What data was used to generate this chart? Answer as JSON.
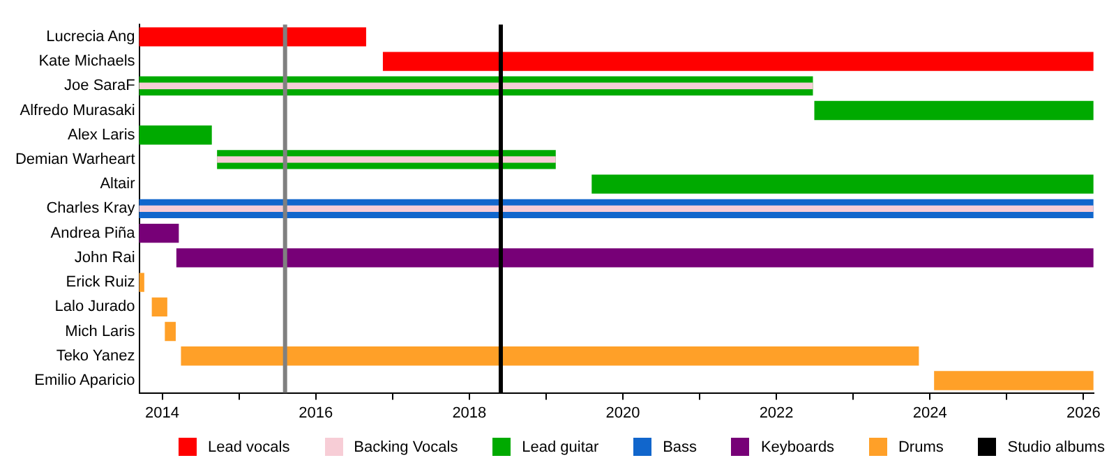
{
  "chart_data": {
    "type": "bar",
    "orientation": "horizontal",
    "categories": [
      "Lucrecia Ang",
      "Kate Michaels",
      "Joe SaraF",
      "Alfredo Murasaki",
      "Alex Laris",
      "Demian Warheart",
      "Altair",
      "Charles Kray",
      "Andrea Piña",
      "John Rai",
      "Erick Ruiz",
      "Lalo Jurado",
      "Mich Laris",
      "Teko Yanez",
      "Emilio Aparicio"
    ],
    "series": [
      {
        "name": "Lead vocals",
        "color": "#ff0000",
        "base": [
          2013.7,
          2016.88,
          null,
          null,
          null,
          null,
          null,
          null,
          null,
          null,
          null,
          null,
          null,
          null,
          null
        ],
        "values": [
          2.95,
          9.25,
          null,
          null,
          null,
          null,
          null,
          null,
          null,
          null,
          null,
          null,
          null,
          null,
          null
        ]
      },
      {
        "name": "Backing Vocals",
        "color": "#f7cdd6",
        "base": [
          null,
          null,
          2013.7,
          null,
          null,
          2014.72,
          null,
          2013.7,
          null,
          null,
          null,
          null,
          null,
          null,
          null
        ],
        "values": [
          null,
          null,
          8.77,
          null,
          null,
          4.4,
          null,
          12.43,
          null,
          null,
          null,
          null,
          null,
          null,
          null
        ]
      },
      {
        "name": "Lead guitar",
        "color": "#00aa00",
        "base": [
          null,
          null,
          2013.7,
          2022.5,
          2013.7,
          2014.72,
          2019.6,
          null,
          null,
          null,
          null,
          null,
          null,
          null,
          null
        ],
        "values": [
          null,
          null,
          8.77,
          3.63,
          0.94,
          4.4,
          6.53,
          null,
          null,
          null,
          null,
          null,
          null,
          null,
          null
        ]
      },
      {
        "name": "Bass",
        "color": "#1166cc",
        "base": [
          null,
          null,
          null,
          null,
          null,
          null,
          null,
          2013.7,
          null,
          null,
          null,
          null,
          null,
          null,
          null
        ],
        "values": [
          null,
          null,
          null,
          null,
          null,
          null,
          null,
          12.43,
          null,
          null,
          null,
          null,
          null,
          null,
          null
        ]
      },
      {
        "name": "Keyboards",
        "color": "#770077",
        "base": [
          null,
          null,
          null,
          null,
          null,
          null,
          null,
          null,
          2013.7,
          2014.19,
          null,
          null,
          null,
          null,
          null
        ],
        "values": [
          null,
          null,
          null,
          null,
          null,
          null,
          null,
          null,
          0.51,
          11.94,
          null,
          null,
          null,
          null,
          null
        ]
      },
      {
        "name": "Drums",
        "color": "#ffa028",
        "base": [
          null,
          null,
          null,
          null,
          null,
          null,
          null,
          null,
          null,
          null,
          2013.7,
          2013.87,
          2014.04,
          2014.25,
          2024.06
        ],
        "values": [
          null,
          null,
          null,
          null,
          null,
          null,
          null,
          null,
          null,
          null,
          0.06,
          0.19,
          0.13,
          9.6,
          2.07
        ]
      }
    ],
    "xlim": [
      2013.7,
      2026.13
    ],
    "xticks": [
      2014,
      {
        "value": 2015,
        "label": null
      },
      2016,
      {
        "value": 2017,
        "label": null
      },
      2018,
      {
        "value": 2019,
        "label": null
      },
      2020,
      {
        "value": 2021,
        "label": null
      },
      2022,
      {
        "value": 2023,
        "label": null
      },
      2024,
      {
        "value": 2025,
        "label": null
      },
      2026
    ],
    "ref_lines": [
      {
        "axis": "x",
        "value": 2015.6,
        "color": "#808080"
      },
      {
        "axis": "x",
        "value": 2018.41,
        "color": "#000000",
        "label": "Studio albums"
      }
    ],
    "grid": false,
    "legend": "bottom"
  }
}
